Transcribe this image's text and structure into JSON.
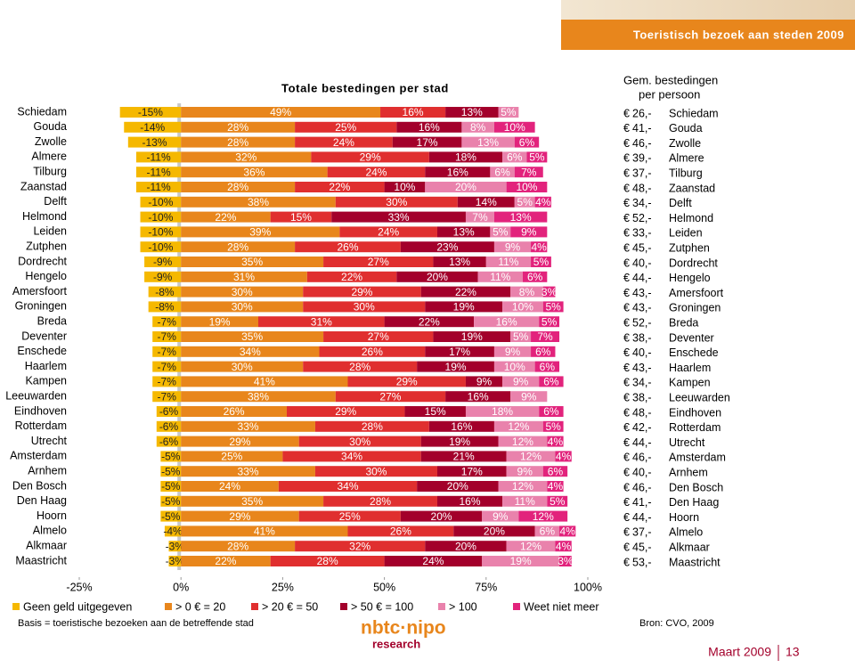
{
  "banner": {
    "title": "Toeristisch bezoek aan steden 2009"
  },
  "chart_data": {
    "type": "stacked-bar-horizontal",
    "title": "Totale bestedingen per stad",
    "categories": [
      "Schiedam",
      "Gouda",
      "Zwolle",
      "Almere",
      "Tilburg",
      "Zaanstad",
      "Delft",
      "Helmond",
      "Leiden",
      "Zutphen",
      "Dordrecht",
      "Hengelo",
      "Amersfoort",
      "Groningen",
      "Breda",
      "Deventer",
      "Enschede",
      "Haarlem",
      "Kampen",
      "Leeuwarden",
      "Eindhoven",
      "Rotterdam",
      "Utrecht",
      "Amsterdam",
      "Arnhem",
      "Den Bosch",
      "Den Haag",
      "Hoorn",
      "Almelo",
      "Alkmaar",
      "Maastricht"
    ],
    "xlim": [
      -25,
      100
    ],
    "xticks": [
      {
        "value": -25,
        "label": "-25%"
      },
      {
        "value": 0,
        "label": "0%"
      },
      {
        "value": 25,
        "label": "25%"
      },
      {
        "value": 50,
        "label": "50%"
      },
      {
        "value": 75,
        "label": "75%"
      },
      {
        "value": 100,
        "label": "100%"
      }
    ],
    "series": [
      {
        "name": "Geen geld uitgegeven",
        "color": "#f5b800",
        "values": [
          -15,
          -14,
          -13,
          -11,
          -11,
          -11,
          -10,
          -10,
          -10,
          -10,
          -9,
          -9,
          -8,
          -8,
          -7,
          -7,
          -7,
          -7,
          -7,
          -7,
          -6,
          -6,
          -6,
          -5,
          -5,
          -5,
          -5,
          -5,
          -4,
          -3,
          -3
        ],
        "value_labels": [
          "-15%",
          "-14%",
          "-13%",
          "-11%",
          "-11%",
          "-11%",
          "-10%",
          "-10%",
          "-10%",
          "-10%",
          "-9%",
          "-9%",
          "-8%",
          "-8%",
          "-7%",
          "-7%",
          "-7%",
          "-7%",
          "-7%",
          "-7%",
          "-6%",
          "-6%",
          "-6%",
          "-5%",
          "-5%",
          "-5%",
          "-5%",
          "-5%",
          "-4%",
          "-3%",
          "-3%"
        ]
      },
      {
        "name": "> 0 € = 20",
        "color": "#e8861c",
        "values": [
          49,
          28,
          28,
          32,
          36,
          28,
          38,
          22,
          39,
          28,
          35,
          31,
          30,
          30,
          19,
          35,
          34,
          30,
          41,
          38,
          26,
          33,
          29,
          25,
          33,
          24,
          35,
          29,
          41,
          28,
          22
        ],
        "value_labels": [
          "49%",
          "28%",
          "28%",
          "32%",
          "36%",
          "28%",
          "38%",
          "22%",
          "39%",
          "28%",
          "35%",
          "31%",
          "30%",
          "30%",
          "19%",
          "35%",
          "34%",
          "30%",
          "41%",
          "38%",
          "26%",
          "33%",
          "29%",
          "25%",
          "33%",
          "24%",
          "35%",
          "29%",
          "41%",
          "28%",
          "22%"
        ]
      },
      {
        "name": "> 20 € = 50",
        "color": "#e02f2f",
        "values": [
          16,
          25,
          24,
          29,
          24,
          22,
          30,
          15,
          24,
          26,
          27,
          22,
          29,
          30,
          31,
          27,
          26,
          28,
          29,
          27,
          29,
          28,
          30,
          34,
          30,
          34,
          28,
          25,
          26,
          32,
          28
        ],
        "value_labels": [
          "16%",
          "25%",
          "24%",
          "29%",
          "24%",
          "22%",
          "30%",
          "15%",
          "24%",
          "26%",
          "27%",
          "22%",
          "29%",
          "30%",
          "31%",
          "27%",
          "26%",
          "28%",
          "29%",
          "27%",
          "29%",
          "28%",
          "30%",
          "34%",
          "30%",
          "34%",
          "28%",
          "25%",
          "26%",
          "32%",
          "28%"
        ]
      },
      {
        "name": "> 50 € = 100",
        "color": "#a3002b",
        "values": [
          13,
          16,
          17,
          18,
          16,
          10,
          14,
          33,
          13,
          23,
          13,
          20,
          22,
          19,
          22,
          19,
          17,
          19,
          9,
          16,
          15,
          16,
          19,
          21,
          17,
          20,
          16,
          20,
          20,
          20,
          24
        ],
        "value_labels": [
          "13%",
          "16%",
          "17%",
          "18%",
          "16%",
          "10%",
          "14%",
          "33%",
          "13%",
          "23%",
          "13%",
          "20%",
          "22%",
          "19%",
          "22%",
          "19%",
          "17%",
          "19%",
          "9%",
          "16%",
          "15%",
          "16%",
          "19%",
          "21%",
          "17%",
          "20%",
          "16%",
          "20%",
          "20%",
          "20%",
          "24%"
        ]
      },
      {
        "name": "> 100",
        "color": "#e982ac",
        "values": [
          5,
          8,
          13,
          6,
          6,
          20,
          5,
          7,
          5,
          9,
          11,
          11,
          8,
          10,
          16,
          5,
          9,
          10,
          9,
          9,
          18,
          12,
          12,
          12,
          9,
          12,
          11,
          9,
          6,
          12,
          19
        ],
        "value_labels": [
          "5%",
          "8%",
          "13%",
          "6%",
          "6%",
          "20%",
          "5%",
          "7%",
          "5%",
          "9%",
          "11%",
          "11%",
          "8%",
          "10%",
          "16%",
          "5%",
          "9%",
          "10%",
          "9%",
          "9%",
          "18%",
          "12%",
          "12%",
          "12%",
          "9%",
          "12%",
          "11%",
          "9%",
          "6%",
          "12%",
          "19%"
        ]
      },
      {
        "name": "Weet niet meer",
        "color": "#e2237c",
        "values": [
          null,
          10,
          6,
          5,
          7,
          10,
          4,
          13,
          9,
          4,
          5,
          6,
          3,
          5,
          5,
          7,
          6,
          6,
          6,
          null,
          6,
          5,
          4,
          4,
          6,
          4,
          5,
          12,
          4,
          4,
          3
        ],
        "value_labels": [
          null,
          "10%",
          "6%",
          "5%",
          "7%",
          "10%",
          "4%",
          "13%",
          "9%",
          "4%",
          "5%",
          "6%",
          "3%",
          "5%",
          "5%",
          "7%",
          "6%",
          "6%",
          "6%",
          null,
          "6%",
          "5%",
          "4%",
          "4%",
          "6%",
          "4%",
          "5%",
          "12%",
          "4%",
          "4%",
          "3%"
        ]
      }
    ]
  },
  "spending": {
    "title_line1": "Gem. bestedingen",
    "title_line2": "per persoon",
    "currency": "€",
    "amounts": [
      "26,-",
      "41,-",
      "46,-",
      "39,-",
      "37,-",
      "48,-",
      "34,-",
      "52,-",
      "33,-",
      "45,-",
      "40,-",
      "44,-",
      "43,-",
      "43,-",
      "52,-",
      "38,-",
      "40,-",
      "43,-",
      "34,-",
      "38,-",
      "48,-",
      "42,-",
      "44,-",
      "46,-",
      "40,-",
      "46,-",
      "41,-",
      "44,-",
      "37,-",
      "45,-",
      "53,-"
    ]
  },
  "footer": {
    "basis": "Basis =  toeristische bezoeken aan de betreffende stad",
    "source": "Bron: CVO, 2009",
    "logo_top": "nbtc·nipo",
    "logo_bottom": "research",
    "date": "Maart 2009",
    "page": "13"
  }
}
